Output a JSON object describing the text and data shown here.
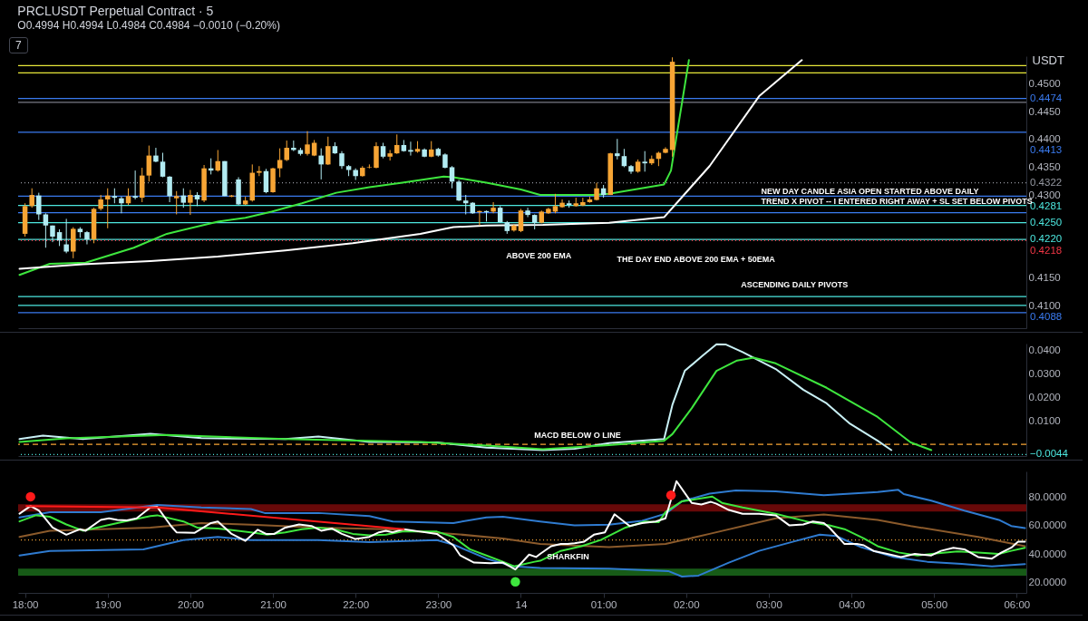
{
  "chart_data": [
    {
      "type": "candlestick",
      "title": "PRCLUSDT Perpetual Contract · 5",
      "subtitle": "O0.4994 H0.4994 L0.4984 C0.4984 −0.0010 (−0.20%)",
      "ylabel": "USDT",
      "tick_labels": "y",
      "xlim": [
        "--01-13T17:55",
        "--01-14T06:07"
      ],
      "ylim": [
        0.406,
        0.455
      ],
      "yticks": [
        {
          "value": 0.41,
          "label": "0.4100"
        },
        {
          "value": 0.415,
          "label": "0.4150"
        },
        {
          "value": 0.43,
          "label": "0.4300"
        },
        {
          "value": 0.435,
          "label": "0.4350"
        },
        {
          "value": 0.44,
          "label": "0.4400"
        },
        {
          "value": 0.445,
          "label": "0.4450"
        },
        {
          "value": 0.45,
          "label": "0.4500"
        }
      ],
      "x": [
        "--01-13T18:00",
        "--01-13T18:05",
        "--01-13T18:10",
        "--01-13T18:15",
        "--01-13T18:20",
        "--01-13T18:25",
        "--01-13T18:30",
        "--01-13T18:35",
        "--01-13T18:40",
        "--01-13T18:45",
        "--01-13T18:50",
        "--01-13T18:55",
        "--01-13T19:00",
        "--01-13T19:05",
        "--01-13T19:10",
        "--01-13T19:15",
        "--01-13T19:20",
        "--01-13T19:25",
        "--01-13T19:30",
        "--01-13T19:35",
        "--01-13T19:40",
        "--01-13T19:45",
        "--01-13T19:50",
        "--01-13T19:55",
        "--01-13T20:00",
        "--01-13T20:05",
        "--01-13T20:10",
        "--01-13T20:15",
        "--01-13T20:20",
        "--01-13T20:25",
        "--01-13T20:30",
        "--01-13T20:35",
        "--01-13T20:40",
        "--01-13T20:45",
        "--01-13T20:50",
        "--01-13T20:55",
        "--01-13T21:00",
        "--01-13T21:05",
        "--01-13T21:10",
        "--01-13T21:15",
        "--01-13T21:20",
        "--01-13T21:25",
        "--01-13T21:30",
        "--01-13T21:35",
        "--01-13T21:40",
        "--01-13T21:45",
        "--01-13T21:50",
        "--01-13T21:55",
        "--01-13T22:00",
        "--01-13T22:05",
        "--01-13T22:10",
        "--01-13T22:15",
        "--01-13T22:20",
        "--01-13T22:25",
        "--01-13T22:30",
        "--01-13T22:35",
        "--01-13T22:40",
        "--01-13T22:45",
        "--01-13T22:50",
        "--01-13T22:55",
        "--01-13T23:00",
        "--01-13T23:05",
        "--01-13T23:10",
        "--01-13T23:15",
        "--01-13T23:20",
        "--01-13T23:25",
        "--01-13T23:30",
        "--01-13T23:35",
        "--01-13T23:40",
        "--01-13T23:45",
        "--01-13T23:50",
        "--01-13T23:55",
        "--01-14T00:00",
        "--01-14T00:05",
        "--01-14T00:10",
        "--01-14T00:15",
        "--01-14T00:20",
        "--01-14T00:25",
        "--01-14T00:30",
        "--01-14T00:35",
        "--01-14T00:40",
        "--01-14T00:45",
        "--01-14T00:50",
        "--01-14T00:55",
        "--01-14T01:00",
        "--01-14T01:05",
        "--01-14T01:10",
        "--01-14T01:15",
        "--01-14T01:20",
        "--01-14T01:25",
        "--01-14T01:30",
        "--01-14T01:35",
        "--01-14T01:40",
        "--01-14T01:45",
        "--01-14T01:50"
      ],
      "ohlc": [
        [
          0.423,
          0.4285,
          0.4225,
          0.428
        ],
        [
          0.428,
          0.4312,
          0.4277,
          0.43
        ],
        [
          0.4299,
          0.4304,
          0.4255,
          0.4265
        ],
        [
          0.4265,
          0.4267,
          0.4205,
          0.4245
        ],
        [
          0.4245,
          0.4245,
          0.4215,
          0.4225
        ],
        [
          0.4233,
          0.4238,
          0.4208,
          0.4218
        ],
        [
          0.4211,
          0.4257,
          0.4195,
          0.4198
        ],
        [
          0.4198,
          0.4242,
          0.4186,
          0.4239
        ],
        [
          0.4239,
          0.4242,
          0.4223,
          0.4233
        ],
        [
          0.4233,
          0.4235,
          0.4211,
          0.422
        ],
        [
          0.422,
          0.4277,
          0.4213,
          0.4275
        ],
        [
          0.4275,
          0.43,
          0.4272,
          0.4292
        ],
        [
          0.4292,
          0.4312,
          0.424,
          0.4299
        ],
        [
          0.4298,
          0.4312,
          0.4285,
          0.4295
        ],
        [
          0.4294,
          0.4297,
          0.4267,
          0.4285
        ],
        [
          0.4285,
          0.4312,
          0.4282,
          0.4298
        ],
        [
          0.4298,
          0.4344,
          0.4292,
          0.4295
        ],
        [
          0.4295,
          0.4349,
          0.4287,
          0.4335
        ],
        [
          0.4335,
          0.4389,
          0.4324,
          0.4371
        ],
        [
          0.4371,
          0.4385,
          0.4359,
          0.436
        ],
        [
          0.436,
          0.4376,
          0.4332,
          0.4333
        ],
        [
          0.4333,
          0.4334,
          0.4287,
          0.4298
        ],
        [
          0.4294,
          0.4307,
          0.4265,
          0.4298
        ],
        [
          0.4299,
          0.4312,
          0.4277,
          0.4286
        ],
        [
          0.4286,
          0.4309,
          0.4264,
          0.43
        ],
        [
          0.43,
          0.4305,
          0.428,
          0.4292
        ],
        [
          0.429,
          0.4354,
          0.4287,
          0.4348
        ],
        [
          0.4348,
          0.4366,
          0.4337,
          0.4344
        ],
        [
          0.4344,
          0.4381,
          0.4342,
          0.4361
        ],
        [
          0.4361,
          0.4361,
          0.4298,
          0.4298
        ],
        [
          0.4297,
          0.43,
          0.4296,
          0.4299
        ],
        [
          0.4328,
          0.4332,
          0.4282,
          0.4283
        ],
        [
          0.4283,
          0.4297,
          0.4282,
          0.429
        ],
        [
          0.429,
          0.4355,
          0.4288,
          0.434
        ],
        [
          0.434,
          0.4352,
          0.4334,
          0.4343
        ],
        [
          0.4343,
          0.4347,
          0.4303,
          0.4305
        ],
        [
          0.4305,
          0.4349,
          0.4304,
          0.4348
        ],
        [
          0.4348,
          0.4384,
          0.4332,
          0.4363
        ],
        [
          0.4363,
          0.4398,
          0.4361,
          0.4385
        ],
        [
          0.4385,
          0.4398,
          0.4379,
          0.4381
        ],
        [
          0.4381,
          0.4385,
          0.4371,
          0.4374
        ],
        [
          0.4374,
          0.4415,
          0.4371,
          0.4391
        ],
        [
          0.4371,
          0.4399,
          0.437,
          0.4394
        ],
        [
          0.4371,
          0.4384,
          0.4328,
          0.4355
        ],
        [
          0.4355,
          0.4405,
          0.4354,
          0.4388
        ],
        [
          0.4388,
          0.4395,
          0.4374,
          0.4375
        ],
        [
          0.4375,
          0.4379,
          0.4347,
          0.4352
        ],
        [
          0.4352,
          0.4354,
          0.4334,
          0.4345
        ],
        [
          0.4345,
          0.4348,
          0.4327,
          0.4334
        ],
        [
          0.4334,
          0.4352,
          0.4333,
          0.4349
        ],
        [
          0.4349,
          0.4355,
          0.4348,
          0.435
        ],
        [
          0.4349,
          0.4395,
          0.4348,
          0.4388
        ],
        [
          0.4388,
          0.4394,
          0.4366,
          0.4369
        ],
        [
          0.4369,
          0.4381,
          0.4362,
          0.4375
        ],
        [
          0.4375,
          0.4409,
          0.4374,
          0.439
        ],
        [
          0.439,
          0.4399,
          0.4378,
          0.4379
        ],
        [
          0.4381,
          0.4396,
          0.4371,
          0.4378
        ],
        [
          0.4378,
          0.4397,
          0.4376,
          0.4383
        ],
        [
          0.4382,
          0.4384,
          0.4368,
          0.4369
        ],
        [
          0.4369,
          0.4397,
          0.4368,
          0.4382
        ],
        [
          0.4383,
          0.4385,
          0.4369,
          0.4371
        ],
        [
          0.4373,
          0.4375,
          0.4348,
          0.4349
        ],
        [
          0.435,
          0.4352,
          0.4312,
          0.4324
        ],
        [
          0.4324,
          0.4327,
          0.4289,
          0.429
        ],
        [
          0.429,
          0.43,
          0.4265,
          0.4285
        ],
        [
          0.4286,
          0.4287,
          0.4266,
          0.4267
        ],
        [
          0.4269,
          0.4272,
          0.4245,
          0.4271
        ],
        [
          0.4271,
          0.4272,
          0.4252,
          0.4269
        ],
        [
          0.427,
          0.4287,
          0.4267,
          0.4277
        ],
        [
          0.4277,
          0.428,
          0.425,
          0.4251
        ],
        [
          0.4251,
          0.4253,
          0.423,
          0.4235
        ],
        [
          0.4236,
          0.4247,
          0.4234,
          0.4245
        ],
        [
          0.4235,
          0.4275,
          0.4233,
          0.4272
        ],
        [
          0.4272,
          0.4277,
          0.426,
          0.4264
        ],
        [
          0.4264,
          0.4265,
          0.4238,
          0.425
        ],
        [
          0.425,
          0.4272,
          0.4249,
          0.427
        ],
        [
          0.4267,
          0.4277,
          0.4266,
          0.4275
        ],
        [
          0.427,
          0.4302,
          0.4267,
          0.428
        ],
        [
          0.4278,
          0.4292,
          0.4277,
          0.4286
        ],
        [
          0.4285,
          0.429,
          0.4277,
          0.4282
        ],
        [
          0.428,
          0.4295,
          0.4279,
          0.4285
        ],
        [
          0.4281,
          0.4295,
          0.428,
          0.4287
        ],
        [
          0.4287,
          0.4297,
          0.4286,
          0.4292
        ],
        [
          0.4291,
          0.4322,
          0.429,
          0.4312
        ],
        [
          0.4312,
          0.4318,
          0.4295,
          0.43
        ],
        [
          0.43,
          0.4376,
          0.43,
          0.4375
        ],
        [
          0.4375,
          0.4401,
          0.4364,
          0.437
        ],
        [
          0.437,
          0.4383,
          0.435,
          0.4352
        ],
        [
          0.4352,
          0.4354,
          0.4338,
          0.4342
        ],
        [
          0.4342,
          0.4364,
          0.434,
          0.436
        ],
        [
          0.436,
          0.4379,
          0.4342,
          0.4357
        ],
        [
          0.4357,
          0.4371,
          0.4354,
          0.4365
        ],
        [
          0.4365,
          0.4378,
          0.4352,
          0.4376
        ],
        [
          0.4376,
          0.4386,
          0.4375,
          0.4383
        ],
        [
          0.4381,
          0.4548,
          0.4369,
          0.454
        ]
      ],
      "colors": [
        "#f7a535",
        "#f7a535",
        "#b2ebf2",
        "#b2ebf2",
        "#b2ebf2",
        "#b2ebf2",
        "#b2ebf2",
        "#f7a535",
        "#b2ebf2",
        "#b2ebf2",
        "#f7a535",
        "#f7a535",
        "#f7a535",
        "#b2ebf2",
        "#b2ebf2",
        "#f7a535",
        "#b2ebf2",
        "#f7a535",
        "#f7a535",
        "#b2ebf2",
        "#b2ebf2",
        "#b2ebf2",
        "#f7a535",
        "#b2ebf2",
        "#f7a535",
        "#b2ebf2",
        "#f7a535",
        "#b2ebf2",
        "#f7a535",
        "#b2ebf2",
        "#f7a535",
        "#b2ebf2",
        "#f7a535",
        "#f7a535",
        "#f7a535",
        "#b2ebf2",
        "#f7a535",
        "#f7a535",
        "#f7a535",
        "#b2ebf2",
        "#b2ebf2",
        "#f7a535",
        "#f7a535",
        "#b2ebf2",
        "#f7a535",
        "#b2ebf2",
        "#b2ebf2",
        "#b2ebf2",
        "#b2ebf2",
        "#f7a535",
        "#f7a535",
        "#f7a535",
        "#b2ebf2",
        "#f7a535",
        "#f7a535",
        "#b2ebf2",
        "#b2ebf2",
        "#f7a535",
        "#b2ebf2",
        "#f7a535",
        "#b2ebf2",
        "#b2ebf2",
        "#b2ebf2",
        "#b2ebf2",
        "#b2ebf2",
        "#b2ebf2",
        "#f7a535",
        "#b2ebf2",
        "#f7a535",
        "#b2ebf2",
        "#b2ebf2",
        "#f7a535",
        "#f7a535",
        "#b2ebf2",
        "#b2ebf2",
        "#f7a535",
        "#f7a535",
        "#f7a535",
        "#f7a535",
        "#b2ebf2",
        "#f7a535",
        "#f7a535",
        "#f7a535",
        "#f7a535",
        "#b2ebf2",
        "#f7a535",
        "#b2ebf2",
        "#b2ebf2",
        "#b2ebf2",
        "#f7a535",
        "#b2ebf2",
        "#f7a535",
        "#f7a535",
        "#f7a535",
        "#f7a535"
      ],
      "series": [
        {
          "type": "line",
          "color": "#3ee63e",
          "x": [
            "--01-13T17:56",
            "--01-13T18:18",
            "--01-13T18:44",
            "--01-13T19:19",
            "--01-13T19:43",
            "--01-13T20:20",
            "--01-13T20:40",
            "--01-13T20:59",
            "--01-13T21:21",
            "--01-13T21:46",
            "--01-13T22:10",
            "--01-13T22:34",
            "--01-13T23:04",
            "--01-13T23:11",
            "--01-13T23:35",
            "--01-14T00:00",
            "--01-14T00:14",
            "--01-14T00:53",
            "--01-14T01:04",
            "--01-14T01:44",
            "--01-14T01:49",
            "--01-14T02:02"
          ],
          "values": [
            0.4156,
            0.4176,
            0.4178,
            0.4205,
            0.423,
            0.4252,
            0.4259,
            0.427,
            0.4285,
            0.4304,
            0.4314,
            0.4322,
            0.4333,
            0.4332,
            0.4322,
            0.431,
            0.43,
            0.43,
            0.4302,
            0.4319,
            0.4344,
            0.4543
          ]
        },
        {
          "type": "line",
          "color": "#ffffff",
          "x": [
            "--01-13T17:56",
            "--01-13T18:42",
            "--01-13T19:31",
            "--01-13T20:20",
            "--01-13T21:09",
            "--01-13T21:58",
            "--01-13T22:47",
            "--01-13T23:11",
            "--01-13T23:35",
            "--01-14T00:16",
            "--01-14T01:04",
            "--01-14T01:44",
            "--01-14T02:17",
            "--01-14T02:53",
            "--01-14T03:24"
          ],
          "values": [
            0.4167,
            0.4175,
            0.4181,
            0.4189,
            0.42,
            0.4213,
            0.423,
            0.4242,
            0.4245,
            0.4246,
            0.425,
            0.426,
            0.4352,
            0.4478,
            0.4543
          ]
        }
      ],
      "ref_lines": [
        {
          "axis": "y",
          "value": 0.4533,
          "color": "#e8e83a"
        },
        {
          "axis": "y",
          "value": 0.452,
          "color": "#e8e83a"
        },
        {
          "axis": "y",
          "value": 0.4467,
          "color": "#787b86"
        },
        {
          "axis": "y",
          "value": 0.4474,
          "label": "0.4474",
          "color": "#3a7bf0"
        },
        {
          "axis": "y",
          "value": 0.4413,
          "label": "0.4413",
          "color": "#3a7bf0"
        },
        {
          "axis": "y",
          "value": 0.4322,
          "label": "0.4322",
          "color": "#9598a1",
          "line_style": "dotted"
        },
        {
          "axis": "y",
          "value": 0.4298,
          "color": "#3a7bf0"
        },
        {
          "axis": "y",
          "value": 0.4281,
          "label": "0.4281",
          "color": "#4de8e0"
        },
        {
          "axis": "y",
          "value": 0.4268,
          "color": "#3a7bf0"
        },
        {
          "axis": "y",
          "value": 0.425,
          "label": "0.4250",
          "color": "#4de8e0"
        },
        {
          "axis": "y",
          "value": 0.422,
          "label": "0.4220",
          "color": "#4de8e0"
        },
        {
          "axis": "y",
          "value": 0.4218,
          "label": "0.4218",
          "color": "#f23645",
          "line_style": "dotted"
        },
        {
          "axis": "y",
          "value": 0.4117,
          "color": "#4de8e0"
        },
        {
          "axis": "y",
          "value": 0.4101,
          "color": "#4de8e0"
        },
        {
          "axis": "y",
          "value": 0.4088,
          "label": "0.4088",
          "color": "#3a7bf0"
        }
      ],
      "annotations": [
        "7",
        "NEW DAY CANDLE ASIA OPEN STARTED ABOVE DAILY\nTREND X PIVOT -- I ENTERED RIGHT AWAY + SL SET BELOW PIVOTS",
        "ABOVE 200 EMA",
        "THE DAY END ABOVE 200 EMA + 50EMA",
        "ASCENDING DAILY PIVOTS"
      ]
    },
    {
      "type": "line",
      "tick_labels": "y",
      "xlim": [
        "--01-13T17:55",
        "--01-14T06:07"
      ],
      "ylim": [
        -0.005,
        0.0428
      ],
      "yticks": [
        {
          "value": 0.01,
          "label": "0.0100"
        },
        {
          "value": 0.02,
          "label": "0.0200"
        },
        {
          "value": 0.03,
          "label": "0.0300"
        },
        {
          "value": 0.04,
          "label": "0.0400"
        }
      ],
      "series": [
        {
          "color": "#c8f0f5",
          "x": [
            "--01-13T17:56",
            "--01-13T18:13",
            "--01-13T18:42",
            "--01-13T19:31",
            "--01-13T20:08",
            "--01-13T21:09",
            "--01-13T21:33",
            "--01-13T22:10",
            "--01-13T22:59",
            "--01-13T23:35",
            "--01-14T00:16",
            "--01-14T00:39",
            "--01-14T01:04",
            "--01-14T01:44",
            "--01-14T01:50",
            "--01-14T01:59",
            "--01-14T02:12",
            "--01-14T02:22",
            "--01-14T02:29",
            "--01-14T02:41",
            "--01-14T03:05",
            "--01-14T03:25",
            "--01-14T03:42",
            "--01-14T03:59",
            "--01-14T04:19",
            "--01-14T04:29"
          ],
          "values": [
            0.0022,
            0.0037,
            0.0022,
            0.0044,
            0.0026,
            0.0022,
            0.0033,
            0.001,
            0.0008,
            -0.0014,
            -0.0025,
            -0.0019,
            0.0005,
            0.0022,
            0.0167,
            0.0312,
            0.0377,
            0.0425,
            0.0424,
            0.0392,
            0.032,
            0.0232,
            0.0174,
            0.0087,
            0.0015,
            -0.0025
          ]
        },
        {
          "color": "#3ee63e",
          "x": [
            "--01-13T17:56",
            "--01-13T18:30",
            "--01-13T19:43",
            "--01-13T21:09",
            "--01-13T22:47",
            "--01-13T23:35",
            "--01-14T00:16",
            "--01-14T01:04",
            "--01-14T01:44",
            "--01-14T01:50",
            "--01-14T02:04",
            "--01-14T02:22",
            "--01-14T02:37",
            "--01-14T02:49",
            "--01-14T03:05",
            "--01-14T03:42",
            "--01-14T04:19",
            "--01-14T04:43",
            "--01-14T04:58"
          ],
          "values": [
            0.001,
            0.0025,
            0.004,
            0.0022,
            0.001,
            -0.0006,
            -0.0021,
            -0.0004,
            0.0015,
            0.0043,
            0.0153,
            0.0312,
            0.0356,
            0.0368,
            0.0344,
            0.024,
            0.0116,
            0.0008,
            -0.0025
          ]
        }
      ],
      "ref_lines": [
        {
          "axis": "y",
          "value": 0,
          "color": "#f7a535",
          "line_style": "dashed"
        },
        {
          "axis": "y",
          "value": -0.0044,
          "label": "−0.0044",
          "color": "#4de8e0",
          "line_style": "dotted"
        }
      ],
      "annotations": [
        "MACD  BELOW O LINE"
      ]
    },
    {
      "type": "line",
      "xlim": [
        "--01-13T17:55",
        "--01-14T06:07"
      ],
      "ylim": [
        13,
        98
      ],
      "xticks": [
        {
          "value": "--01-13T18:00",
          "label": "18:00"
        },
        {
          "value": "--01-13T19:00",
          "label": "19:00"
        },
        {
          "value": "--01-13T20:00",
          "label": "20:00"
        },
        {
          "value": "--01-13T21:00",
          "label": "21:00"
        },
        {
          "value": "--01-13T22:00",
          "label": "22:00"
        },
        {
          "value": "--01-13T23:00",
          "label": "23:00"
        },
        {
          "value": "--01-14T00:00",
          "label": "14"
        },
        {
          "value": "--01-14T01:00",
          "label": "01:00"
        },
        {
          "value": "--01-14T02:00",
          "label": "02:00"
        },
        {
          "value": "--01-14T03:00",
          "label": "03:00"
        },
        {
          "value": "--01-14T04:00",
          "label": "04:00"
        },
        {
          "value": "--01-14T05:00",
          "label": "05:00"
        },
        {
          "value": "--01-14T06:00",
          "label": "06:00"
        }
      ],
      "yticks": [
        {
          "value": 20,
          "label": "20.0000"
        },
        {
          "value": 40,
          "label": "40.0000"
        },
        {
          "value": 60,
          "label": "60.0000"
        },
        {
          "value": 80,
          "label": "80.0000"
        }
      ],
      "bands": [
        {
          "axis": "y",
          "from": 70,
          "to": 75,
          "color": "#7a0a0a"
        },
        {
          "axis": "y",
          "from": 25,
          "to": 30,
          "color": "#1b6b1b"
        }
      ],
      "ref_lines": [
        {
          "axis": "y",
          "value": 50,
          "color": "#f7a535",
          "line_style": "dotted"
        }
      ],
      "series": [
        {
          "color": "#2f7bd0",
          "x": [
            "--01-13T17:56",
            "--01-13T18:18",
            "--01-13T18:55",
            "--01-13T19:36",
            "--01-13T20:08",
            "--01-13T20:44",
            "--01-13T20:54",
            "--01-13T21:33",
            "--01-13T22:10",
            "--01-13T22:27",
            "--01-13T23:11",
            "--01-13T23:35",
            "--01-13T23:47",
            "--01-14T00:14",
            "--01-14T00:39",
            "--01-14T01:04",
            "--01-14T01:28",
            "--01-14T01:45",
            "--01-14T01:57",
            "--01-14T02:17",
            "--01-14T02:36",
            "--01-14T03:05",
            "--01-14T03:40",
            "--01-14T04:19",
            "--01-14T04:34",
            "--01-14T04:38",
            "--01-14T04:58",
            "--01-14T05:22",
            "--01-14T05:47",
            "--01-14T05:56",
            "--01-14T06:06"
          ],
          "values": [
            65.8,
            69.5,
            69.5,
            74.5,
            72.8,
            71.7,
            68.9,
            68.9,
            66.7,
            63,
            61.9,
            65.8,
            66.3,
            63,
            60.2,
            60.8,
            63.4,
            68.4,
            77.1,
            82.5,
            84.7,
            84,
            81.4,
            83.6,
            85.1,
            82.1,
            77.5,
            70.6,
            64.1,
            59.8,
            58.3
          ]
        },
        {
          "color": "#2f7bd0",
          "x": [
            "--01-13T17:56",
            "--01-13T18:18",
            "--01-13T19:26",
            "--01-13T19:55",
            "--01-13T20:20",
            "--01-13T20:44",
            "--01-13T21:33",
            "--01-13T22:10",
            "--01-13T22:59",
            "--01-13T23:11",
            "--01-13T23:35",
            "--01-13T23:55",
            "--01-14T00:14",
            "--01-14T01:04",
            "--01-14T01:47",
            "--01-14T01:57",
            "--01-14T02:09",
            "--01-14T02:31",
            "--01-14T02:53",
            "--01-14T03:18",
            "--01-14T03:37",
            "--01-14T03:49",
            "--01-14T04:07",
            "--01-14T04:31",
            "--01-14T04:55",
            "--01-14T05:20",
            "--01-14T05:42",
            "--01-14T06:06"
          ],
          "values": [
            39.2,
            42.4,
            43.5,
            50,
            52.2,
            50,
            50,
            48.5,
            50,
            46.8,
            37,
            31.6,
            30.5,
            29.9,
            28.3,
            24.4,
            25.1,
            34.2,
            42.4,
            48.9,
            53.7,
            52.8,
            45,
            38.1,
            34.8,
            33.3,
            31.6,
            33.1
          ]
        },
        {
          "color": "#8b5a2b",
          "x": [
            "--01-13T17:56",
            "--01-13T18:18",
            "--01-13T19:31",
            "--01-13T20:08",
            "--01-13T20:44",
            "--01-13T21:33",
            "--01-13T22:22",
            "--01-13T23:11",
            "--01-13T23:47",
            "--01-14T00:14",
            "--01-14T01:04",
            "--01-14T01:45",
            "--01-14T02:17",
            "--01-14T03:05",
            "--01-14T03:40",
            "--01-14T04:19",
            "--01-14T04:43",
            "--01-14T05:32",
            "--01-14T06:06"
          ],
          "values": [
            52.2,
            56.5,
            58.7,
            61.9,
            60.8,
            58.7,
            57.6,
            54.3,
            51.1,
            47.2,
            45,
            47.2,
            54.3,
            65.2,
            67.8,
            64.1,
            59.8,
            52.2,
            45.7
          ]
        },
        {
          "color": "#3ee63e",
          "x": [
            "--01-13T17:56",
            "--01-13T18:08",
            "--01-13T18:18",
            "--01-13T18:30",
            "--01-13T18:42",
            "--01-13T19:07",
            "--01-13T19:31",
            "--01-13T19:36",
            "--01-13T19:55",
            "--01-13T20:05",
            "--01-13T20:20",
            "--01-13T20:44",
            "--01-13T20:56",
            "--01-13T21:09",
            "--01-13T21:21",
            "--01-13T21:33",
            "--01-13T21:46",
            "--01-13T21:58",
            "--01-13T22:10",
            "--01-13T22:22",
            "--01-13T22:34",
            "--01-13T22:59",
            "--01-13T23:11",
            "--01-13T23:23",
            "--01-13T23:35",
            "--01-13T23:47",
            "--01-13T23:55",
            "--01-14T00:10",
            "--01-14T00:14",
            "--01-14T00:29",
            "--01-14T00:44",
            "--01-14T00:58",
            "--01-14T01:16",
            "--01-14T01:30",
            "--01-14T01:40",
            "--01-14T01:45",
            "--01-14T01:57",
            "--01-14T02:19",
            "--01-14T02:26",
            "--01-14T02:41",
            "--01-14T03:05",
            "--01-14T03:30",
            "--01-14T03:44",
            "--01-14T03:55",
            "--01-14T04:09",
            "--01-14T04:19",
            "--01-14T04:34",
            "--01-14T04:48",
            "--01-14T05:03",
            "--01-14T05:17",
            "--01-14T05:32",
            "--01-14T05:47",
            "--01-14T05:56",
            "--01-14T06:06"
          ],
          "values": [
            63,
            67.3,
            66.3,
            60.9,
            56.5,
            61.9,
            66.7,
            67.3,
            63,
            58.7,
            58,
            55.4,
            53.7,
            55.4,
            57.6,
            58.7,
            57.2,
            54.3,
            53.3,
            53.7,
            55.9,
            55.9,
            52.2,
            43.5,
            39.2,
            34.8,
            31.6,
            34.8,
            35.5,
            42.4,
            45.7,
            50,
            58.7,
            63,
            62.4,
            69.5,
            77.1,
            80.4,
            76,
            72.8,
            68.4,
            62.4,
            60.2,
            57.6,
            51.1,
            45.7,
            41.3,
            39.2,
            40.7,
            42,
            41.3,
            40.3,
            42.4,
            44.6
          ]
        },
        {
          "color": "#ffffff",
          "x": [
            "--01-13T17:56",
            "--01-13T18:04",
            "--01-13T18:10",
            "--01-13T18:20",
            "--01-13T18:30",
            "--01-13T18:40",
            "--01-13T18:44",
            "--01-13T18:55",
            "--01-13T19:01",
            "--01-13T19:07",
            "--01-13T19:14",
            "--01-13T19:21",
            "--01-13T19:31",
            "--01-13T19:36",
            "--01-13T19:46",
            "--01-13T19:50",
            "--01-13T20:03",
            "--01-13T20:15",
            "--01-13T20:20",
            "--01-13T20:30",
            "--01-13T20:40",
            "--01-13T20:49",
            "--01-13T20:55",
            "--01-13T21:01",
            "--01-13T21:09",
            "--01-13T21:19",
            "--01-13T21:28",
            "--01-13T21:35",
            "--01-13T21:43",
            "--01-13T21:50",
            "--01-13T22:00",
            "--01-13T22:10",
            "--01-13T22:17",
            "--01-13T22:22",
            "--01-13T22:27",
            "--01-13T22:35",
            "--01-13T22:47",
            "--01-13T22:59",
            "--01-13T23:11",
            "--01-13T23:16",
            "--01-13T23:26",
            "--01-13T23:38",
            "--01-13T23:47",
            "--01-13T23:56",
            "--01-14T00:06",
            "--01-14T00:11",
            "--01-14T00:14",
            "--01-14T00:22",
            "--01-14T00:29",
            "--01-14T00:34",
            "--01-14T00:39",
            "--01-14T00:46",
            "--01-14T00:53",
            "--01-14T01:01",
            "--01-14T01:08",
            "--01-14T01:19",
            "--01-14T01:28",
            "--01-14T01:38",
            "--01-14T01:45",
            "--01-14T01:53",
            "--01-14T02:04",
            "--01-14T02:11",
            "--01-14T02:18",
            "--01-14T02:22",
            "--01-14T02:31",
            "--01-14T02:41",
            "--01-14T02:53",
            "--01-14T03:05",
            "--01-14T03:15",
            "--01-14T03:25",
            "--01-14T03:32",
            "--01-14T03:40",
            "--01-14T03:44",
            "--01-14T03:55",
            "--01-14T04:04",
            "--01-14T04:09",
            "--01-14T04:16",
            "--01-14T04:26",
            "--01-14T04:36",
            "--01-14T04:46",
            "--01-14T04:53",
            "--01-14T04:58",
            "--01-14T05:05",
            "--01-14T05:14",
            "--01-14T05:22",
            "--01-14T05:32",
            "--01-14T05:42",
            "--01-14T05:49",
            "--01-14T05:56",
            "--01-14T06:01",
            "--01-14T06:06"
          ],
          "values": [
            68.4,
            73.8,
            70.6,
            58.7,
            53.7,
            57.6,
            56.5,
            64.1,
            65.2,
            64.1,
            63.7,
            65.2,
            72.8,
            73.2,
            59.8,
            55.4,
            55,
            61.9,
            63,
            54.3,
            49.4,
            57.2,
            54.3,
            54.3,
            58.7,
            60.9,
            59.8,
            56.5,
            58,
            54.3,
            50.7,
            52.2,
            55.4,
            56.5,
            55.4,
            57.6,
            55.9,
            54.3,
            46.3,
            39.2,
            34.2,
            33.8,
            34.2,
            29.4,
            39.8,
            38.1,
            40.3,
            45.7,
            47.2,
            47.2,
            47.8,
            48.9,
            53.7,
            55.4,
            68,
            59.8,
            61.9,
            63,
            65.2,
            91.2,
            76,
            74.9,
            76.7,
            75.4,
            71,
            68.4,
            68.4,
            67.3,
            60.2,
            60.9,
            63,
            61.9,
            58.7,
            47.2,
            47.2,
            46.3,
            42.4,
            40.3,
            38.1,
            40.3,
            39.6,
            39.2,
            42.4,
            44.6,
            43.5,
            38.1,
            37,
            41.3,
            44.6,
            48.9,
            48.9
          ]
        },
        {
          "color": "#ff1a1a",
          "x": [
            "--01-13T18:01",
            "--01-13T19:36",
            "--01-13T22:35"
          ],
          "values": [
            73.8,
            72.8,
            57.6
          ]
        },
        {
          "type": "scatter",
          "x": [
            "--01-13T18:04",
            "--01-13T23:56",
            "--01-14T01:49"
          ],
          "values": [
            80.3,
            20.8,
            81.4
          ],
          "colors": [
            "#ff1a1a",
            "#3ee63e",
            "#ff1a1a"
          ]
        }
      ],
      "annotations": [
        {
          "text": "SHARKFIN",
          "x": "--01-14T00:19",
          "y": 32.7
        }
      ]
    }
  ]
}
